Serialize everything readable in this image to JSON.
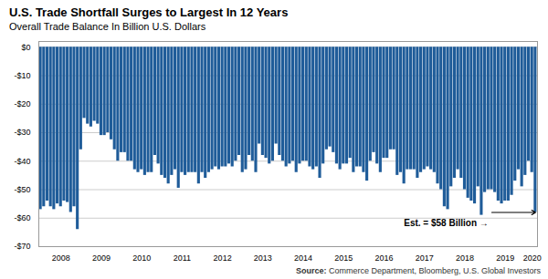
{
  "chart_data": {
    "type": "bar",
    "title": "U.S. Trade Shortfall Surges to Largest In 12 Years",
    "subtitle": "Overall Trade Balance In Billion U.S. Dollars",
    "source": "Source: Commerce Department, Bloomberg, U.S. Global Investors",
    "annotation": "Est. = $58 Billion →",
    "color": "#1F5C99",
    "grid": true,
    "ylim": [
      -70,
      2
    ],
    "yticks": [
      {
        "value": 0,
        "label": "$0"
      },
      {
        "value": -10,
        "label": "-$10"
      },
      {
        "value": -20,
        "label": "-$20"
      },
      {
        "value": -30,
        "label": "-$30"
      },
      {
        "value": -40,
        "label": "-$40"
      },
      {
        "value": -50,
        "label": "-$50"
      },
      {
        "value": -60,
        "label": "-$60"
      },
      {
        "value": -70,
        "label": "-$70"
      }
    ],
    "categories": [
      null,
      null,
      null,
      null,
      null,
      null,
      "2008",
      null,
      null,
      null,
      null,
      null,
      null,
      null,
      null,
      null,
      null,
      null,
      "2009",
      null,
      null,
      null,
      null,
      null,
      null,
      null,
      null,
      null,
      null,
      null,
      "2010",
      null,
      null,
      null,
      null,
      null,
      null,
      null,
      null,
      null,
      null,
      null,
      "2011",
      null,
      null,
      null,
      null,
      null,
      null,
      null,
      null,
      null,
      null,
      null,
      "2012",
      null,
      null,
      null,
      null,
      null,
      null,
      null,
      null,
      null,
      null,
      null,
      "2013",
      null,
      null,
      null,
      null,
      null,
      null,
      null,
      null,
      null,
      null,
      null,
      "2014",
      null,
      null,
      null,
      null,
      null,
      null,
      null,
      null,
      null,
      null,
      null,
      "2015",
      null,
      null,
      null,
      null,
      null,
      null,
      null,
      null,
      null,
      null,
      null,
      "2016",
      null,
      null,
      null,
      null,
      null,
      null,
      null,
      null,
      null,
      null,
      null,
      "2017",
      null,
      null,
      null,
      null,
      null,
      null,
      null,
      null,
      null,
      null,
      null,
      "2018",
      null,
      null,
      null,
      null,
      null,
      null,
      null,
      null,
      null,
      null,
      null,
      "2019",
      null,
      null,
      null,
      null,
      null,
      null,
      null,
      "2020",
      null
    ],
    "values": [
      -57.0,
      -56.0,
      -54.0,
      -56.0,
      -57.0,
      -55.0,
      -56.0,
      -54.0,
      -54.5,
      -58.0,
      -56.0,
      -64.0,
      -36.0,
      -25.0,
      -27.0,
      -28.0,
      -26.0,
      -27.0,
      -31.0,
      -31.0,
      -30.0,
      -32.5,
      -36.0,
      -40.0,
      -37.0,
      -37.0,
      -40.0,
      -40.0,
      -43.0,
      -44.0,
      -43.0,
      -45.0,
      -44.0,
      -44.0,
      -38.0,
      -41.0,
      -45.0,
      -46.0,
      -48.0,
      -45.0,
      -43.0,
      -49.5,
      -44.0,
      -45.0,
      -44.0,
      -44.0,
      -44.0,
      -48.0,
      -44.0,
      -46.0,
      -44.0,
      -43.0,
      -42.0,
      -43.0,
      -42.0,
      -42.0,
      -41.0,
      -42.0,
      -40.0,
      -38.0,
      -44.0,
      -43.0,
      -38.0,
      -40.0,
      -44.0,
      -34.0,
      -38.0,
      -39.0,
      -41.0,
      -40.0,
      -34.0,
      -38.0,
      -40.0,
      -42.0,
      -41.0,
      -40.0,
      -44.0,
      -41.0,
      -40.0,
      -40.0,
      -42.0,
      -43.0,
      -42.0,
      -46.0,
      -41.0,
      -36.0,
      -35.0,
      -37.0,
      -41.0,
      -43.0,
      -41.0,
      -41.0,
      -39.0,
      -44.0,
      -42.0,
      -42.0,
      -44.0,
      -47.0,
      -40.0,
      -37.0,
      -41.0,
      -44.0,
      -39.0,
      -39.0,
      -36.0,
      -36.0,
      -45.0,
      -44.0,
      -48.0,
      -43.0,
      -43.0,
      -43.0,
      -46.0,
      -44.0,
      -43.0,
      -42.0,
      -43.0,
      -44.0,
      -48.0,
      -50.0,
      -56.0,
      -57.0,
      -49.0,
      -46.0,
      -43.0,
      -46.0,
      -50.0,
      -53.0,
      -54.0,
      -55.0,
      -49.0,
      -59.0,
      -51.0,
      -50.0,
      -50.0,
      -51.0,
      -54.0,
      -55.0,
      -54.0,
      -54.0,
      -52.0,
      -47.0,
      -43.0,
      -49.0,
      -45.0,
      -40.0,
      -44.0,
      -58.0
    ]
  }
}
